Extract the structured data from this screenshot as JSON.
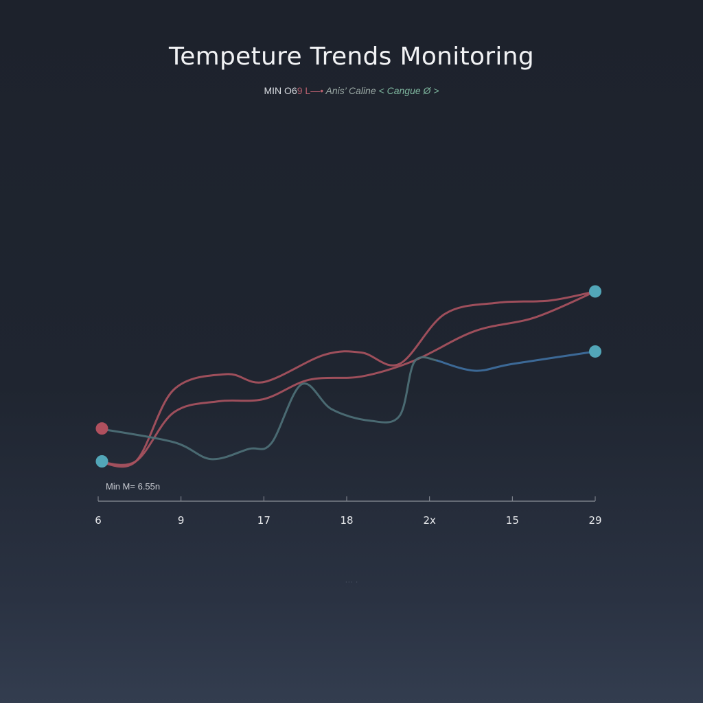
{
  "title": "Tempeture Trends Monitoring",
  "subtitle": {
    "part1": "MIN O6",
    "part2": "9 L—•",
    "part3": " Anis’ Caline",
    "part4": " < Cangue Ø >"
  },
  "min_label": "Min   M= 6.55n",
  "footnote": "··· ·",
  "colors": {
    "red": "#a9525f",
    "teal": "#4e7077",
    "blue": "#3f6f9f",
    "dot_teal": "#52a6b8",
    "dot_red": "#b0505e",
    "axis": "#8a8f98"
  },
  "chart_data": {
    "type": "line",
    "title": "Tempeture Trends Monitoring",
    "x_tick_labels": [
      "6",
      "9",
      "17",
      "18",
      "2x",
      "15",
      "29"
    ],
    "xlabel": "",
    "ylabel": "",
    "grid": false,
    "legend": "none",
    "series": [
      {
        "color": "#a9525f",
        "points": [
          [
            0,
            0.0
          ],
          [
            0.5,
            0.0
          ],
          [
            1.0,
            0.63
          ],
          [
            1.7,
            0.77
          ],
          [
            2.2,
            0.7
          ],
          [
            3.0,
            0.94
          ],
          [
            3.5,
            0.96
          ],
          [
            4.0,
            0.86
          ],
          [
            4.6,
            1.3
          ],
          [
            5.3,
            1.4
          ],
          [
            6.0,
            1.42
          ],
          [
            6.6,
            1.5
          ]
        ]
      },
      {
        "color": "#a9525f",
        "points": [
          [
            0,
            0.0
          ],
          [
            0.5,
            0.0
          ],
          [
            1.0,
            0.43
          ],
          [
            1.6,
            0.53
          ],
          [
            2.2,
            0.55
          ],
          [
            2.8,
            0.72
          ],
          [
            3.5,
            0.75
          ],
          [
            4.2,
            0.89
          ],
          [
            5.0,
            1.15
          ],
          [
            5.8,
            1.27
          ],
          [
            6.6,
            1.5
          ]
        ]
      },
      {
        "color": "#4e7077",
        "points": [
          [
            0,
            0.29
          ],
          [
            1.0,
            0.17
          ],
          [
            1.5,
            0.02
          ],
          [
            2.0,
            0.11
          ],
          [
            2.3,
            0.16
          ],
          [
            2.7,
            0.68
          ],
          [
            3.1,
            0.46
          ],
          [
            3.6,
            0.36
          ],
          [
            4.0,
            0.4
          ],
          [
            4.2,
            0.88
          ],
          [
            4.5,
            0.89
          ]
        ]
      },
      {
        "color": "#3f6f9f",
        "points": [
          [
            4.5,
            0.89
          ],
          [
            5.0,
            0.8
          ],
          [
            5.5,
            0.86
          ],
          [
            6.6,
            0.97
          ]
        ]
      }
    ],
    "markers": [
      {
        "x": 0.05,
        "y": 0.29,
        "color": "#b0505e"
      },
      {
        "x": 0.05,
        "y": 0.0,
        "color": "#52a6b8"
      },
      {
        "x": 6.6,
        "y": 1.5,
        "color": "#52a6b8"
      },
      {
        "x": 6.6,
        "y": 0.97,
        "color": "#52a6b8"
      }
    ]
  }
}
